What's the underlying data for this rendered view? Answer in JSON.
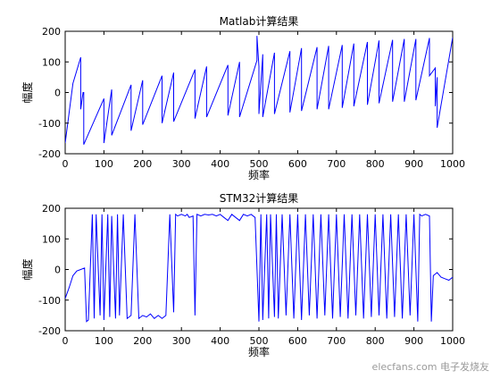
{
  "figure": {
    "background": "#ffffff",
    "line_color": "#0000ff",
    "watermark": "elecfans.com 电子发烧友"
  },
  "chart_data": [
    {
      "type": "line",
      "title": "Matlab计算结果",
      "xlabel": "频率",
      "ylabel": "幅度",
      "xlim": [
        0,
        1000
      ],
      "ylim": [
        -200,
        200
      ],
      "xticks": [
        0,
        100,
        200,
        300,
        400,
        500,
        600,
        700,
        800,
        900,
        1000
      ],
      "yticks": [
        -200,
        -100,
        0,
        100,
        200
      ],
      "grid": false,
      "legend": "none",
      "series": [
        {
          "color": "#0000ff",
          "x": [
            0,
            20,
            40,
            40,
            46,
            48,
            48,
            100,
            100,
            120,
            120,
            170,
            170,
            200,
            200,
            250,
            250,
            280,
            280,
            335,
            335,
            365,
            365,
            420,
            420,
            450,
            450,
            495,
            495,
            500,
            500,
            510,
            510,
            540,
            540,
            580,
            580,
            610,
            610,
            650,
            650,
            680,
            680,
            715,
            715,
            745,
            745,
            780,
            780,
            810,
            810,
            845,
            845,
            875,
            875,
            905,
            905,
            940,
            940,
            955,
            955,
            960,
            960,
            1000
          ],
          "y": [
            -165,
            30,
            115,
            -55,
            0,
            0,
            -170,
            -20,
            -165,
            10,
            -140,
            25,
            -125,
            40,
            -105,
            55,
            -100,
            65,
            -95,
            75,
            -85,
            85,
            -80,
            90,
            -75,
            100,
            -80,
            105,
            185,
            85,
            -70,
            125,
            -80,
            130,
            -70,
            135,
            -65,
            145,
            -60,
            148,
            -55,
            152,
            -55,
            155,
            -50,
            160,
            -45,
            165,
            -40,
            170,
            -35,
            172,
            -30,
            175,
            -30,
            175,
            -25,
            178,
            55,
            80,
            -45,
            50,
            -115,
            180
          ]
        }
      ]
    },
    {
      "type": "line",
      "title": "STM32计算结果",
      "xlabel": "频率",
      "ylabel": "幅度",
      "xlim": [
        0,
        1000
      ],
      "ylim": [
        -200,
        200
      ],
      "xticks": [
        0,
        100,
        200,
        300,
        400,
        500,
        600,
        700,
        800,
        900,
        1000
      ],
      "yticks": [
        -200,
        -100,
        0,
        100,
        200
      ],
      "grid": false,
      "legend": "none",
      "series": [
        {
          "color": "#0000ff",
          "x": [
            0,
            10,
            20,
            30,
            40,
            50,
            55,
            60,
            70,
            75,
            80,
            90,
            95,
            100,
            110,
            115,
            120,
            130,
            135,
            140,
            150,
            160,
            170,
            180,
            190,
            200,
            210,
            220,
            230,
            240,
            250,
            260,
            270,
            280,
            285,
            290,
            300,
            310,
            315,
            320,
            330,
            335,
            340,
            350,
            360,
            370,
            380,
            390,
            400,
            410,
            420,
            430,
            440,
            450,
            460,
            470,
            480,
            490,
            500,
            505,
            510,
            520,
            525,
            530,
            540,
            545,
            550,
            560,
            570,
            580,
            590,
            600,
            610,
            620,
            630,
            640,
            650,
            660,
            670,
            680,
            690,
            700,
            710,
            720,
            730,
            740,
            750,
            760,
            770,
            780,
            790,
            800,
            810,
            820,
            830,
            840,
            850,
            860,
            870,
            880,
            890,
            900,
            910,
            915,
            920,
            930,
            940,
            945,
            950,
            960,
            970,
            980,
            990,
            1000
          ],
          "y": [
            -95,
            -60,
            -20,
            -5,
            0,
            5,
            -170,
            -165,
            180,
            -160,
            180,
            -150,
            180,
            -165,
            180,
            -155,
            175,
            -160,
            180,
            -150,
            180,
            -160,
            -150,
            180,
            -160,
            -150,
            -155,
            -145,
            -160,
            -150,
            -160,
            -150,
            180,
            -140,
            180,
            175,
            180,
            175,
            180,
            170,
            175,
            -150,
            180,
            175,
            180,
            178,
            180,
            175,
            180,
            170,
            160,
            180,
            170,
            160,
            180,
            175,
            180,
            170,
            -170,
            180,
            -165,
            180,
            -160,
            180,
            -155,
            180,
            -160,
            180,
            -150,
            180,
            -160,
            180,
            -165,
            180,
            -150,
            180,
            -160,
            180,
            -150,
            180,
            -160,
            180,
            -155,
            180,
            -160,
            180,
            -150,
            180,
            -160,
            180,
            -155,
            180,
            -150,
            180,
            -160,
            180,
            -155,
            180,
            -160,
            180,
            -150,
            180,
            -170,
            180,
            175,
            180,
            175,
            -170,
            -20,
            -10,
            -25,
            -30,
            -35,
            -25
          ]
        }
      ]
    }
  ]
}
